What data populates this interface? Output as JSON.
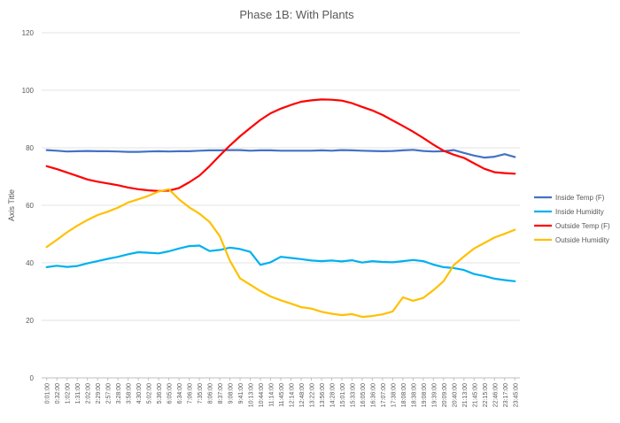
{
  "chart_data": {
    "type": "line",
    "title": "Phase 1B: With Plants",
    "xlabel": "",
    "ylabel": "Axis Title",
    "ylim": [
      0,
      120
    ],
    "yticks": [
      0,
      20,
      40,
      60,
      80,
      100,
      120
    ],
    "grid": true,
    "legend_position": "right",
    "x_tick_labels": [
      "0:01:00",
      "0:32:00",
      "1:02:00",
      "1:31:00",
      "2:02:00",
      "2:29:00",
      "2:57:00",
      "3:28:00",
      "3:58:00",
      "4:30:00",
      "5:02:00",
      "5:36:00",
      "6:05:00",
      "6:34:00",
      "7:06:00",
      "7:35:00",
      "8:06:00",
      "8:37:00",
      "9:08:00",
      "9:41:00",
      "10:13:00",
      "10:44:00",
      "11:14:00",
      "11:45:00",
      "12:14:00",
      "12:48:00",
      "13:22:00",
      "13:56:00",
      "14:28:00",
      "15:01:00",
      "15:33:00",
      "16:05:00",
      "16:36:00",
      "17:07:00",
      "17:38:00",
      "18:08:00",
      "18:38:00",
      "19:08:00",
      "19:39:00",
      "20:09:00",
      "20:40:00",
      "21:13:00",
      "21:45:00",
      "22:15:00",
      "22:46:00",
      "23:17:00",
      "23:45:00"
    ],
    "series": [
      {
        "name": "Inside Temp (F)",
        "color": "#4472C4",
        "values": [
          79.2,
          79.0,
          78.7,
          78.8,
          78.9,
          78.8,
          78.8,
          78.7,
          78.6,
          78.6,
          78.7,
          78.8,
          78.7,
          78.8,
          78.8,
          79.0,
          79.1,
          79.1,
          79.2,
          79.2,
          79.0,
          79.1,
          79.1,
          79.0,
          79.0,
          79.0,
          79.0,
          79.1,
          79.0,
          79.2,
          79.1,
          79.0,
          78.9,
          78.8,
          78.9,
          79.1,
          79.3,
          78.9,
          78.7,
          78.8,
          79.2,
          78.2,
          77.3,
          76.6,
          76.9,
          77.8,
          76.8
        ]
      },
      {
        "name": "Inside Humidity",
        "color": "#00B0F0",
        "values": [
          38.5,
          39.0,
          38.6,
          38.9,
          39.8,
          40.6,
          41.4,
          42.1,
          43.0,
          43.7,
          43.5,
          43.3,
          44.0,
          45.0,
          45.8,
          46.0,
          44.1,
          44.5,
          45.3,
          44.8,
          43.8,
          39.3,
          40.2,
          42.1,
          41.7,
          41.3,
          40.8,
          40.6,
          40.8,
          40.5,
          40.9,
          40.1,
          40.6,
          40.3,
          40.2,
          40.6,
          41.0,
          40.6,
          39.4,
          38.5,
          38.2,
          37.5,
          36.1,
          35.4,
          34.5,
          34.0,
          33.6
        ]
      },
      {
        "name": "Outside Temp (F)",
        "color": "#FF0000",
        "values": [
          73.6,
          72.6,
          71.4,
          70.2,
          69.0,
          68.2,
          67.6,
          67.0,
          66.2,
          65.6,
          65.2,
          65.0,
          65.1,
          66.0,
          68.0,
          70.3,
          73.6,
          77.3,
          80.8,
          84.0,
          86.9,
          89.7,
          92.0,
          93.6,
          94.9,
          96.0,
          96.5,
          96.8,
          96.7,
          96.4,
          95.5,
          94.2,
          93.0,
          91.4,
          89.5,
          87.6,
          85.6,
          83.4,
          81.1,
          79.0,
          77.6,
          76.5,
          74.6,
          72.7,
          71.5,
          71.2,
          71.0
        ]
      },
      {
        "name": "Outside Humidity",
        "color": "#FFC000",
        "values": [
          45.5,
          48.0,
          50.6,
          52.9,
          54.9,
          56.6,
          57.8,
          59.2,
          61.0,
          62.1,
          63.3,
          64.8,
          65.6,
          62.1,
          59.3,
          57.1,
          54.2,
          49.3,
          40.7,
          34.6,
          32.4,
          30.2,
          28.3,
          27.0,
          25.8,
          24.6,
          24.1,
          23.0,
          22.3,
          21.8,
          22.2,
          21.2,
          21.5,
          22.1,
          23.1,
          28.0,
          26.8,
          27.8,
          30.5,
          33.6,
          39.2,
          42.2,
          45.0,
          46.9,
          48.8,
          50.1,
          51.5
        ]
      }
    ]
  }
}
